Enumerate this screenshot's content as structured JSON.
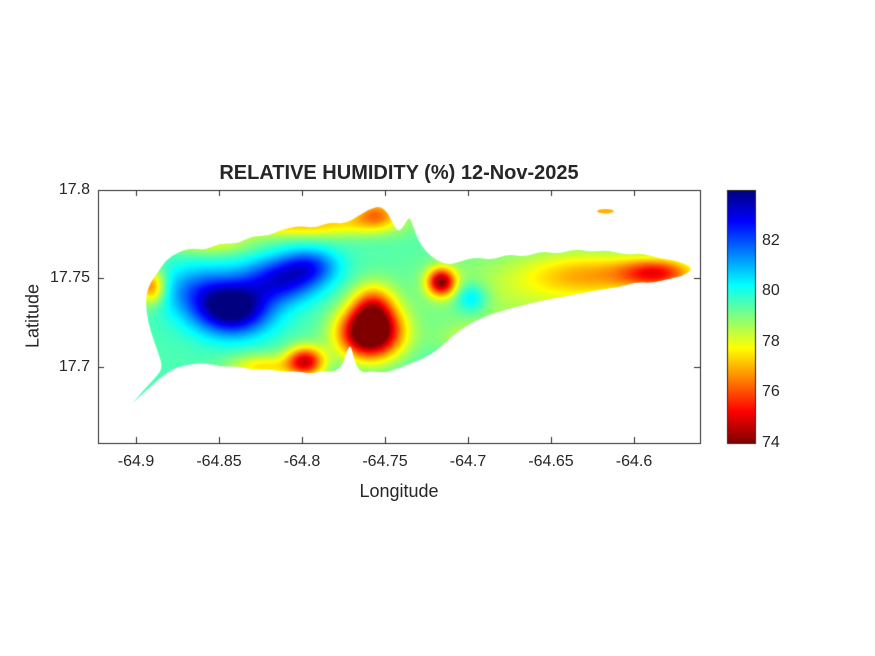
{
  "chart_data": {
    "type": "heatmap",
    "title": "RELATIVE HUMIDITY (%) 12-Nov-2025",
    "xlabel": "Longitude",
    "ylabel": "Latitude",
    "xlim": [
      -64.923,
      -64.56
    ],
    "ylim": [
      17.657,
      17.8
    ],
    "grid": false,
    "x_ticks": [
      -64.9,
      -64.85,
      -64.8,
      -64.75,
      -64.7,
      -64.65,
      -64.6
    ],
    "x_tick_labels": [
      "-64.9",
      "-64.85",
      "-64.8",
      "-64.75",
      "-64.7",
      "-64.65",
      "-64.6"
    ],
    "y_ticks": [
      17.8,
      17.75,
      17.7
    ],
    "y_tick_labels": [
      "17.8",
      "17.75",
      "17.7"
    ],
    "colorbar": {
      "position": "right",
      "clim": [
        74,
        84
      ],
      "ticks": [
        82,
        80,
        78,
        76,
        74
      ],
      "tick_labels": [
        "82",
        "80",
        "78",
        "76",
        "74"
      ],
      "colormap": "jet-reversed (high humidity = dark blue, low = dark red)"
    },
    "base_value": 79.5,
    "features": [
      {
        "name": "high-humidity-core-west",
        "lon": -64.842,
        "lat": 17.7325,
        "amp": 4.8,
        "sx": 0.016,
        "sy": 0.01
      },
      {
        "name": "high-humidity-ridge-ne",
        "lon": -64.813,
        "lat": 17.749,
        "amp": 3.2,
        "sx": 0.016,
        "sy": 0.009
      },
      {
        "name": "high-humidity-north",
        "lon": -64.795,
        "lat": 17.757,
        "amp": 2.2,
        "sx": 0.012,
        "sy": 0.007
      },
      {
        "name": "cyan-halo-west",
        "lon": -64.862,
        "lat": 17.744,
        "amp": 1.8,
        "sx": 0.018,
        "sy": 0.01
      },
      {
        "name": "dry-core-central",
        "lon": -64.759,
        "lat": 17.719,
        "amp": -7.0,
        "sx": 0.013,
        "sy": 0.01
      },
      {
        "name": "dry-central-north-arm",
        "lon": -64.757,
        "lat": 17.734,
        "amp": -3.0,
        "sx": 0.009,
        "sy": 0.009
      },
      {
        "name": "dry-south-coast-spot",
        "lon": -64.798,
        "lat": 17.703,
        "amp": -4.5,
        "sx": 0.008,
        "sy": 0.006
      },
      {
        "name": "orange-south-coast-band",
        "lon": -64.824,
        "lat": 17.7,
        "amp": -2.0,
        "sx": 0.014,
        "sy": 0.005
      },
      {
        "name": "dry-spot-north-central",
        "lon": -64.716,
        "lat": 17.748,
        "amp": -5.0,
        "sx": 0.006,
        "sy": 0.0055
      },
      {
        "name": "dry-east-tip",
        "lon": -64.585,
        "lat": 17.753,
        "amp": -3.5,
        "sx": 0.016,
        "sy": 0.006
      },
      {
        "name": "orange-east-area",
        "lon": -64.625,
        "lat": 17.752,
        "amp": -2.0,
        "sx": 0.028,
        "sy": 0.009
      },
      {
        "name": "orange-west-coast-spot",
        "lon": -64.891,
        "lat": 17.7455,
        "amp": -3.2,
        "sx": 0.006,
        "sy": 0.007
      },
      {
        "name": "orange-north-coast-band",
        "lon": -64.8,
        "lat": 17.781,
        "amp": -2.4,
        "sx": 0.035,
        "sy": 0.0055
      },
      {
        "name": "orange-north-peak",
        "lon": -64.755,
        "lat": 17.787,
        "amp": -2.6,
        "sx": 0.01,
        "sy": 0.006
      },
      {
        "name": "green-east-broad",
        "lon": -64.665,
        "lat": 17.742,
        "amp": -1.0,
        "sx": 0.045,
        "sy": 0.018
      },
      {
        "name": "cyan-dot-east",
        "lon": -64.698,
        "lat": 17.739,
        "amp": 1.6,
        "sx": 0.007,
        "sy": 0.006
      },
      {
        "name": "yellow-south-mid-coast",
        "lon": -64.69,
        "lat": 17.716,
        "amp": -1.2,
        "sx": 0.018,
        "sy": 0.006
      },
      {
        "name": "orange-nw-coast",
        "lon": -64.855,
        "lat": 17.77,
        "amp": -1.4,
        "sx": 0.018,
        "sy": 0.005
      }
    ],
    "islet": {
      "name": "small-island-northeast",
      "lon": -64.617,
      "lat": 17.788,
      "rx": 0.005,
      "ry": 0.0013,
      "value": 77
    },
    "island_outline": [
      [
        -64.903,
        17.6785
      ],
      [
        -64.8965,
        17.6858
      ],
      [
        -64.8886,
        17.6937
      ],
      [
        -64.8838,
        17.6994
      ],
      [
        -64.8868,
        17.7084
      ],
      [
        -64.8916,
        17.7209
      ],
      [
        -64.894,
        17.732
      ],
      [
        -64.894,
        17.7407
      ],
      [
        -64.8916,
        17.7474
      ],
      [
        -64.8868,
        17.7537
      ],
      [
        -64.882,
        17.7604
      ],
      [
        -64.8748,
        17.765
      ],
      [
        -64.8663,
        17.7672
      ],
      [
        -64.8585,
        17.7661
      ],
      [
        -64.8494,
        17.77
      ],
      [
        -64.8392,
        17.7695
      ],
      [
        -64.8301,
        17.774
      ],
      [
        -64.8205,
        17.774
      ],
      [
        -64.8114,
        17.778
      ],
      [
        -64.8012,
        17.7797
      ],
      [
        -64.7921,
        17.7785
      ],
      [
        -64.7831,
        17.7819
      ],
      [
        -64.774,
        17.7808
      ],
      [
        -64.7662,
        17.7853
      ],
      [
        -64.759,
        17.7893
      ],
      [
        -64.7529,
        17.791
      ],
      [
        -64.7481,
        17.787
      ],
      [
        -64.7451,
        17.7808
      ],
      [
        -64.742,
        17.7763
      ],
      [
        -64.7384,
        17.7797
      ],
      [
        -64.7354,
        17.7853
      ],
      [
        -64.733,
        17.7797
      ],
      [
        -64.73,
        17.7717
      ],
      [
        -64.7252,
        17.765
      ],
      [
        -64.7191,
        17.7604
      ],
      [
        -64.7119,
        17.7576
      ],
      [
        -64.7035,
        17.7599
      ],
      [
        -64.695,
        17.7621
      ],
      [
        -64.6854,
        17.7604
      ],
      [
        -64.6757,
        17.7638
      ],
      [
        -64.6655,
        17.7621
      ],
      [
        -64.6552,
        17.7655
      ],
      [
        -64.6456,
        17.7638
      ],
      [
        -64.6353,
        17.7667
      ],
      [
        -64.6251,
        17.765
      ],
      [
        -64.6154,
        17.7661
      ],
      [
        -64.6052,
        17.7633
      ],
      [
        -64.595,
        17.7644
      ],
      [
        -64.5853,
        17.7616
      ],
      [
        -64.5763,
        17.7604
      ],
      [
        -64.5684,
        17.7582
      ],
      [
        -64.5642,
        17.7554
      ],
      [
        -64.5702,
        17.7514
      ],
      [
        -64.5793,
        17.7497
      ],
      [
        -64.5889,
        17.7474
      ],
      [
        -64.5986,
        17.748
      ],
      [
        -64.6082,
        17.7452
      ],
      [
        -64.6179,
        17.744
      ],
      [
        -64.6275,
        17.7424
      ],
      [
        -64.6372,
        17.7407
      ],
      [
        -64.6468,
        17.739
      ],
      [
        -64.6565,
        17.7373
      ],
      [
        -64.6661,
        17.735
      ],
      [
        -64.6757,
        17.7327
      ],
      [
        -64.6854,
        17.7299
      ],
      [
        -64.6944,
        17.7265
      ],
      [
        -64.7029,
        17.722
      ],
      [
        -64.7101,
        17.7169
      ],
      [
        -64.7161,
        17.7113
      ],
      [
        -64.7228,
        17.7068
      ],
      [
        -64.7306,
        17.7034
      ],
      [
        -64.7384,
        17.7005
      ],
      [
        -64.7444,
        17.6983
      ],
      [
        -64.7511,
        17.6966
      ],
      [
        -64.7577,
        17.6977
      ],
      [
        -64.7637,
        17.6966
      ],
      [
        -64.7674,
        17.7005
      ],
      [
        -64.7692,
        17.7073
      ],
      [
        -64.771,
        17.713
      ],
      [
        -64.7734,
        17.7073
      ],
      [
        -64.7758,
        17.7005
      ],
      [
        -64.7806,
        17.6971
      ],
      [
        -64.7879,
        17.6977
      ],
      [
        -64.7951,
        17.696
      ],
      [
        -64.803,
        17.6977
      ],
      [
        -64.8114,
        17.6971
      ],
      [
        -64.8205,
        17.6988
      ],
      [
        -64.8295,
        17.6983
      ],
      [
        -64.8386,
        17.7005
      ],
      [
        -64.8482,
        17.7
      ],
      [
        -64.8573,
        17.7022
      ],
      [
        -64.8663,
        17.7017
      ],
      [
        -64.8748,
        17.7
      ],
      [
        -64.8808,
        17.6971
      ],
      [
        -64.8868,
        17.6926
      ],
      [
        -64.8935,
        17.687
      ],
      [
        -64.8989,
        17.6825
      ]
    ]
  }
}
